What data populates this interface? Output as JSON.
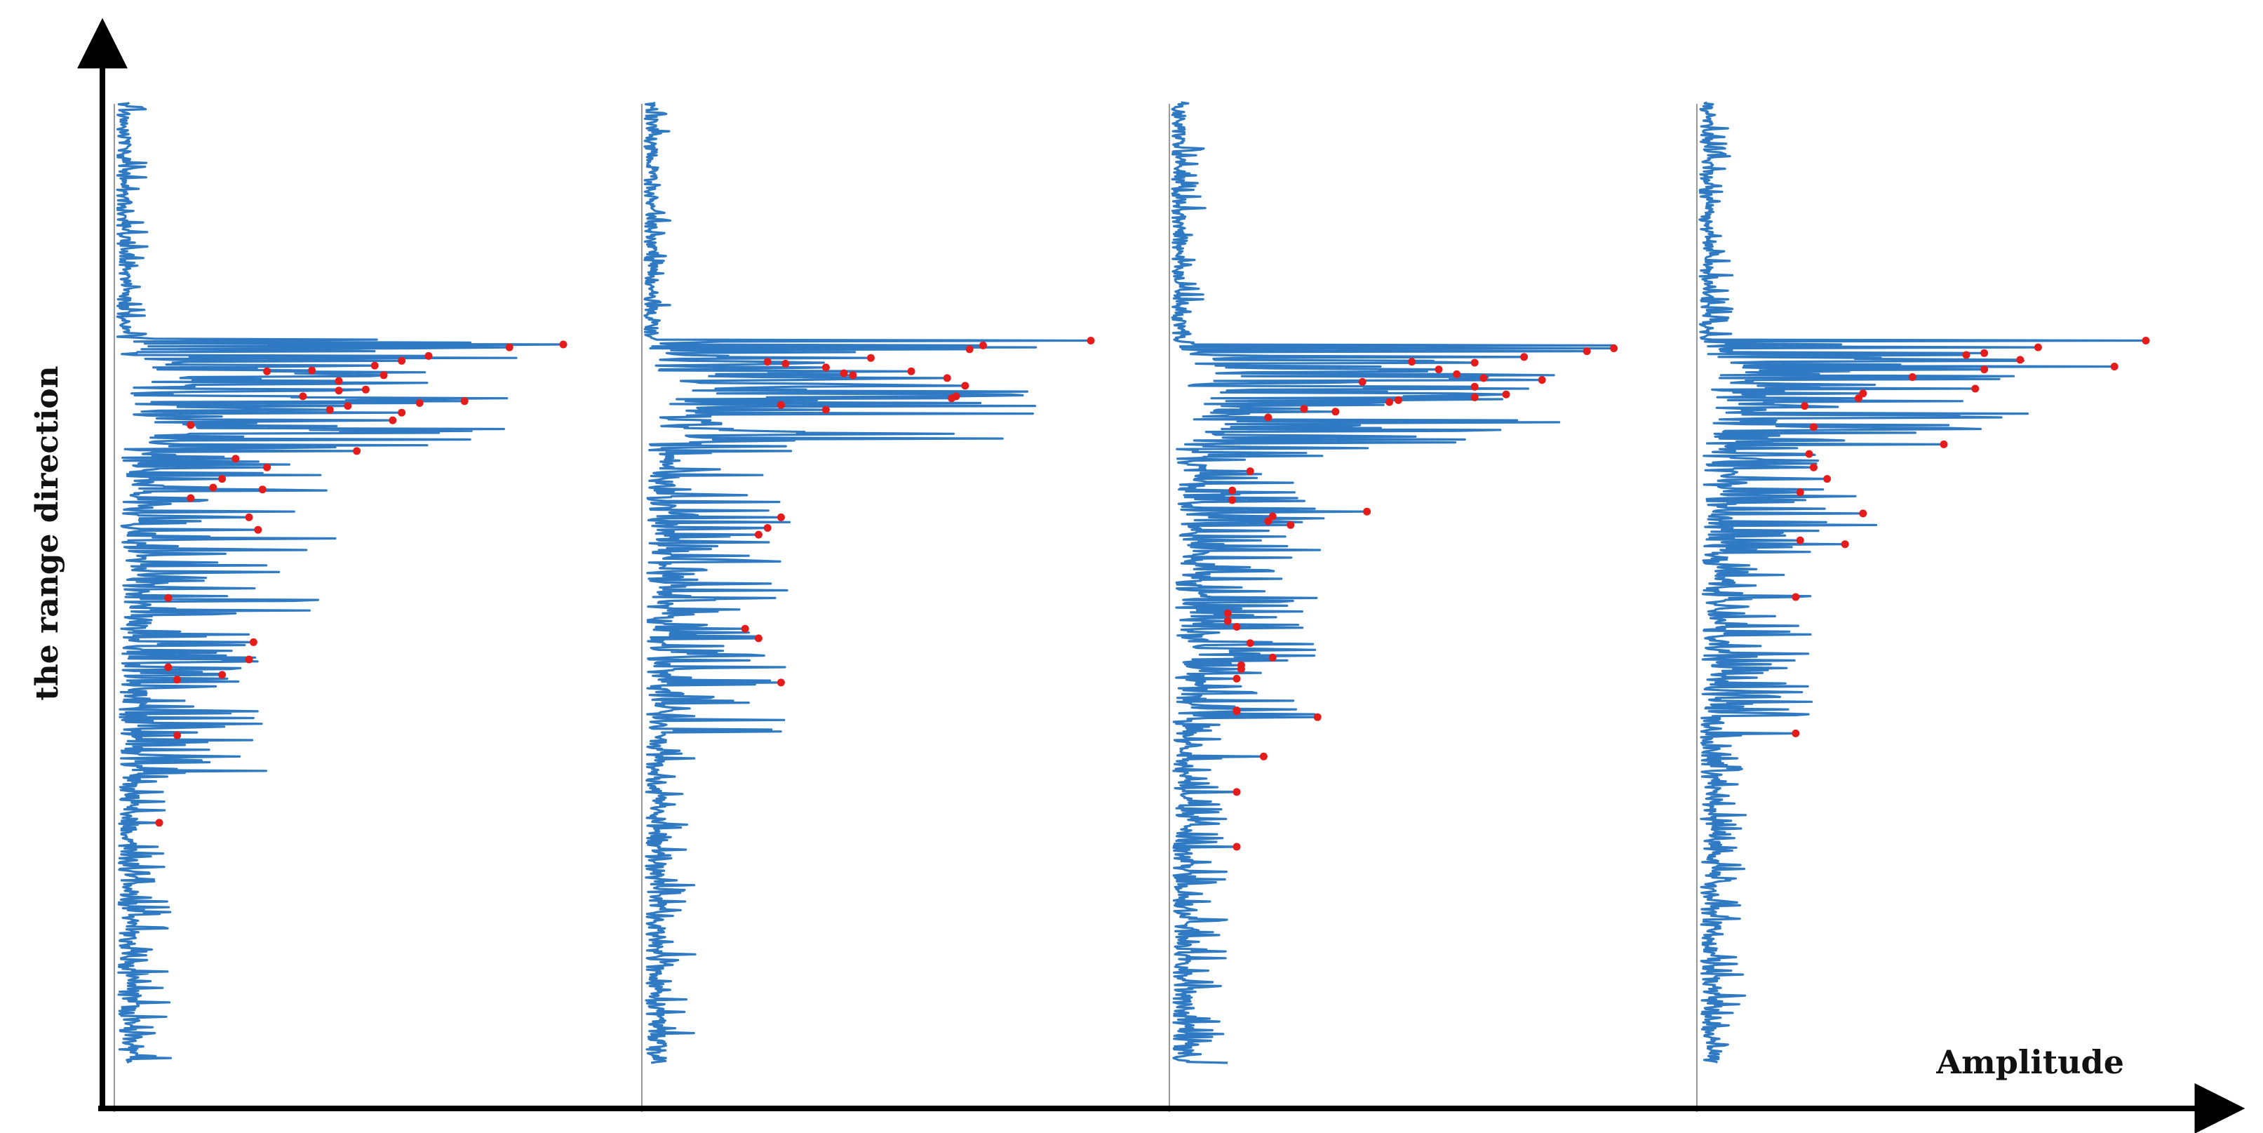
{
  "chart_data": {
    "type": "line",
    "title": "",
    "xlabel": "Amplitude",
    "ylabel": "the range direction",
    "grid": false,
    "legend": "none",
    "colors": {
      "profile": "#2f7ac2",
      "peak": "#e51c1c",
      "axis": "#000000",
      "baseline": "#999999"
    },
    "range_axis": {
      "min": 0,
      "max": 1000
    },
    "amplitude_axis": {
      "min": 0,
      "max": 1
    },
    "panels": [
      {
        "segments": [
          {
            "from": 0,
            "to": 245,
            "base": 0.02,
            "amp": 0.06,
            "freq": 0.55
          },
          {
            "from": 245,
            "to": 265,
            "base": 0.05,
            "amp": 1.0,
            "freq": 0.9
          },
          {
            "from": 265,
            "to": 360,
            "base": 0.1,
            "amp": 0.8,
            "freq": 1.1
          },
          {
            "from": 360,
            "to": 560,
            "base": 0.05,
            "amp": 0.45,
            "freq": 0.9
          },
          {
            "from": 560,
            "to": 700,
            "base": 0.04,
            "amp": 0.3,
            "freq": 0.8
          },
          {
            "from": 700,
            "to": 1000,
            "base": 0.03,
            "amp": 0.1,
            "freq": 0.6
          }
        ],
        "peaks": [
          [
            252,
            1.0
          ],
          [
            255,
            0.88
          ],
          [
            264,
            0.7
          ],
          [
            269,
            0.64
          ],
          [
            274,
            0.58
          ],
          [
            279,
            0.44
          ],
          [
            280,
            0.34
          ],
          [
            284,
            0.6
          ],
          [
            290,
            0.5
          ],
          [
            299,
            0.56
          ],
          [
            300,
            0.5
          ],
          [
            306,
            0.42
          ],
          [
            311,
            0.78
          ],
          [
            313,
            0.68
          ],
          [
            316,
            0.52
          ],
          [
            320,
            0.48
          ],
          [
            323,
            0.64
          ],
          [
            331,
            0.62
          ],
          [
            336,
            0.17
          ],
          [
            363,
            0.54
          ],
          [
            371,
            0.27
          ],
          [
            380,
            0.34
          ],
          [
            392,
            0.24
          ],
          [
            401,
            0.22
          ],
          [
            403,
            0.33
          ],
          [
            412,
            0.17
          ],
          [
            432,
            0.3
          ],
          [
            445,
            0.32
          ],
          [
            516,
            0.12
          ],
          [
            562,
            0.31
          ],
          [
            580,
            0.3
          ],
          [
            588,
            0.12
          ],
          [
            596,
            0.24
          ],
          [
            601,
            0.14
          ],
          [
            659,
            0.14
          ],
          [
            750,
            0.1
          ]
        ]
      },
      {
        "segments": [
          {
            "from": 0,
            "to": 248,
            "base": 0.02,
            "amp": 0.05,
            "freq": 0.45
          },
          {
            "from": 248,
            "to": 262,
            "base": 0.05,
            "amp": 1.0,
            "freq": 0.9
          },
          {
            "from": 262,
            "to": 355,
            "base": 0.1,
            "amp": 0.8,
            "freq": 1.1
          },
          {
            "from": 355,
            "to": 520,
            "base": 0.04,
            "amp": 0.3,
            "freq": 0.8
          },
          {
            "from": 520,
            "to": 660,
            "base": 0.04,
            "amp": 0.28,
            "freq": 0.8
          },
          {
            "from": 660,
            "to": 1000,
            "base": 0.03,
            "amp": 0.09,
            "freq": 0.55
          }
        ],
        "peaks": [
          [
            248,
            1.0
          ],
          [
            253,
            0.76
          ],
          [
            257,
            0.73
          ],
          [
            266,
            0.51
          ],
          [
            270,
            0.28
          ],
          [
            272,
            0.32
          ],
          [
            276,
            0.41
          ],
          [
            280,
            0.6
          ],
          [
            282,
            0.45
          ],
          [
            284,
            0.47
          ],
          [
            287,
            0.68
          ],
          [
            295,
            0.72
          ],
          [
            306,
            0.7
          ],
          [
            308,
            0.69
          ],
          [
            315,
            0.31
          ],
          [
            320,
            0.41
          ],
          [
            432,
            0.31
          ],
          [
            443,
            0.28
          ],
          [
            450,
            0.26
          ],
          [
            548,
            0.23
          ],
          [
            558,
            0.26
          ],
          [
            604,
            0.31
          ]
        ]
      },
      {
        "segments": [
          {
            "from": 0,
            "to": 248,
            "base": 0.02,
            "amp": 0.06,
            "freq": 0.55
          },
          {
            "from": 248,
            "to": 262,
            "base": 0.05,
            "amp": 0.98,
            "freq": 0.9
          },
          {
            "from": 262,
            "to": 360,
            "base": 0.1,
            "amp": 0.8,
            "freq": 1.1
          },
          {
            "from": 360,
            "to": 520,
            "base": 0.05,
            "amp": 0.3,
            "freq": 0.9
          },
          {
            "from": 520,
            "to": 640,
            "base": 0.05,
            "amp": 0.28,
            "freq": 0.9
          },
          {
            "from": 640,
            "to": 1000,
            "base": 0.03,
            "amp": 0.1,
            "freq": 0.6
          }
        ],
        "peaks": [
          [
            256,
            0.99
          ],
          [
            259,
            0.93
          ],
          [
            265,
            0.79
          ],
          [
            270,
            0.54
          ],
          [
            271,
            0.68
          ],
          [
            278,
            0.6
          ],
          [
            283,
            0.64
          ],
          [
            287,
            0.7
          ],
          [
            289,
            0.83
          ],
          [
            291,
            0.43
          ],
          [
            296,
            0.68
          ],
          [
            304,
            0.75
          ],
          [
            307,
            0.68
          ],
          [
            310,
            0.51
          ],
          [
            312,
            0.49
          ],
          [
            319,
            0.3
          ],
          [
            322,
            0.37
          ],
          [
            328,
            0.22
          ],
          [
            384,
            0.18
          ],
          [
            404,
            0.14
          ],
          [
            414,
            0.14
          ],
          [
            426,
            0.44
          ],
          [
            431,
            0.23
          ],
          [
            436,
            0.22
          ],
          [
            440,
            0.27
          ],
          [
            532,
            0.13
          ],
          [
            540,
            0.13
          ],
          [
            546,
            0.15
          ],
          [
            563,
            0.18
          ],
          [
            578,
            0.23
          ],
          [
            586,
            0.16
          ],
          [
            590,
            0.16
          ],
          [
            600,
            0.15
          ],
          [
            633,
            0.15
          ],
          [
            634,
            0.15
          ],
          [
            640,
            0.33
          ],
          [
            681,
            0.21
          ],
          [
            718,
            0.15
          ],
          [
            775,
            0.15
          ]
        ]
      },
      {
        "segments": [
          {
            "from": 0,
            "to": 248,
            "base": 0.02,
            "amp": 0.06,
            "freq": 0.55
          },
          {
            "from": 248,
            "to": 262,
            "base": 0.05,
            "amp": 0.96,
            "freq": 0.9
          },
          {
            "from": 262,
            "to": 345,
            "base": 0.1,
            "amp": 0.65,
            "freq": 1.1
          },
          {
            "from": 345,
            "to": 470,
            "base": 0.05,
            "amp": 0.35,
            "freq": 0.9
          },
          {
            "from": 470,
            "to": 640,
            "base": 0.04,
            "amp": 0.22,
            "freq": 0.8
          },
          {
            "from": 640,
            "to": 1000,
            "base": 0.03,
            "amp": 0.08,
            "freq": 0.55
          }
        ],
        "peaks": [
          [
            248,
            1.0
          ],
          [
            255,
            0.76
          ],
          [
            261,
            0.64
          ],
          [
            263,
            0.6
          ],
          [
            268,
            0.72
          ],
          [
            275,
            0.93
          ],
          [
            278,
            0.64
          ],
          [
            286,
            0.48
          ],
          [
            298,
            0.62
          ],
          [
            303,
            0.37
          ],
          [
            308,
            0.36
          ],
          [
            316,
            0.24
          ],
          [
            338,
            0.26
          ],
          [
            356,
            0.55
          ],
          [
            366,
            0.25
          ],
          [
            380,
            0.26
          ],
          [
            392,
            0.29
          ],
          [
            406,
            0.23
          ],
          [
            428,
            0.37
          ],
          [
            456,
            0.23
          ],
          [
            460,
            0.33
          ],
          [
            515,
            0.22
          ],
          [
            657,
            0.22
          ]
        ]
      }
    ]
  }
}
